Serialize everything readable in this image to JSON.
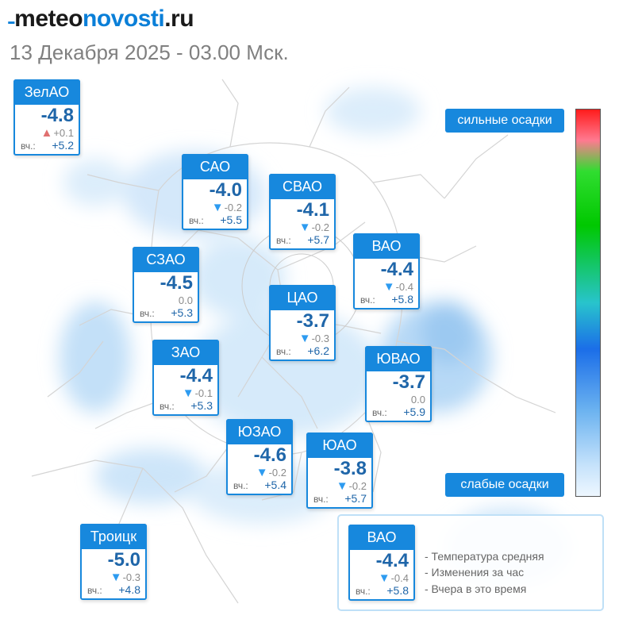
{
  "header": {
    "brand_mark": "˗",
    "brand_meteo": "meteo",
    "brand_novosti": "novosti",
    "brand_tld": ".ru",
    "datetime": "13 Декабря 2025 - 03.00 Мск."
  },
  "districts": [
    {
      "name": "ЗелАО",
      "temp": "-4.8",
      "trend": "up",
      "change": "+0.1",
      "yesterday_label": "вч.:",
      "yesterday": "+5.2"
    },
    {
      "name": "САО",
      "temp": "-4.0",
      "trend": "down",
      "change": "-0.2",
      "yesterday_label": "вч.:",
      "yesterday": "+5.5"
    },
    {
      "name": "СВАО",
      "temp": "-4.1",
      "trend": "down",
      "change": "-0.2",
      "yesterday_label": "вч.:",
      "yesterday": "+5.7"
    },
    {
      "name": "ВАО",
      "temp": "-4.4",
      "trend": "down",
      "change": "-0.4",
      "yesterday_label": "вч.:",
      "yesterday": "+5.8"
    },
    {
      "name": "СЗАО",
      "temp": "-4.5",
      "trend": "none",
      "change": "0.0",
      "yesterday_label": "вч.:",
      "yesterday": "+5.3"
    },
    {
      "name": "ЦАО",
      "temp": "-3.7",
      "trend": "down",
      "change": "-0.3",
      "yesterday_label": "вч.:",
      "yesterday": "+6.2"
    },
    {
      "name": "ЗАО",
      "temp": "-4.4",
      "trend": "down",
      "change": "-0.1",
      "yesterday_label": "вч.:",
      "yesterday": "+5.3"
    },
    {
      "name": "ЮВАО",
      "temp": "-3.7",
      "trend": "none",
      "change": "0.0",
      "yesterday_label": "вч.:",
      "yesterday": "+5.9"
    },
    {
      "name": "ЮЗАО",
      "temp": "-4.6",
      "trend": "down",
      "change": "-0.2",
      "yesterday_label": "вч.:",
      "yesterday": "+5.4"
    },
    {
      "name": "ЮАО",
      "temp": "-3.8",
      "trend": "down",
      "change": "-0.2",
      "yesterday_label": "вч.:",
      "yesterday": "+5.7"
    },
    {
      "name": "Троицк",
      "temp": "-5.0",
      "trend": "down",
      "change": "-0.3",
      "yesterday_label": "вч.:",
      "yesterday": "+4.8"
    }
  ],
  "precip_scale": {
    "strong_label": "сильные осадки",
    "weak_label": "слабые осадки"
  },
  "legend": {
    "sample": {
      "name": "ВАО",
      "temp": "-4.4",
      "trend": "down",
      "change": "-0.4",
      "yesterday_label": "вч.:",
      "yesterday": "+5.8"
    },
    "line_temp": "- Температура средняя",
    "line_change": "- Изменения за час",
    "line_yesterday": "- Вчера в это время"
  },
  "glyphs": {
    "down": "▼",
    "up": "▲"
  },
  "colors": {
    "accent": "#1788dd",
    "value_text": "#1f66a9",
    "trend_down": "#2d9bf0",
    "trend_up": "#e07070"
  }
}
